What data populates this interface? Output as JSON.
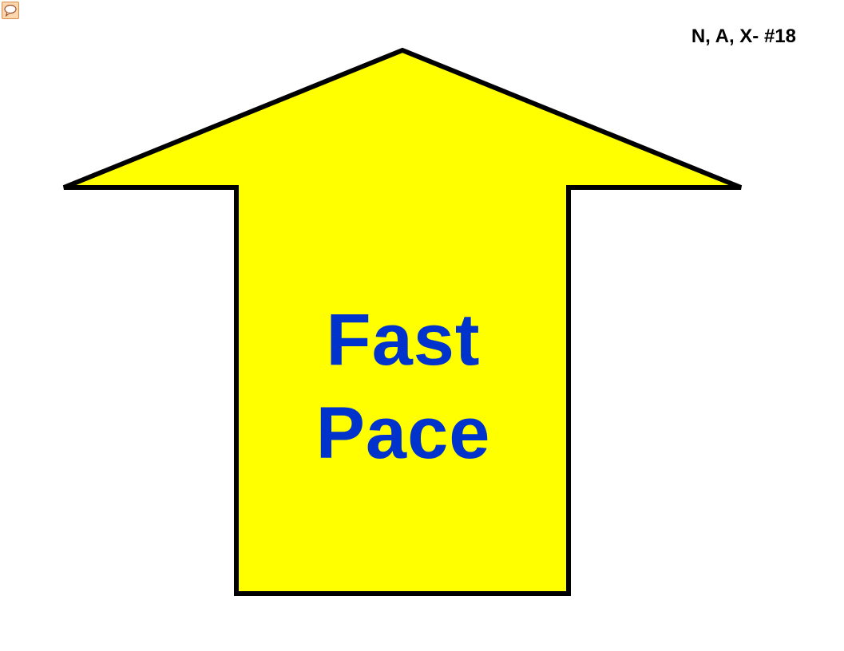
{
  "page": {
    "identifier": "N, A, X- #18"
  },
  "comment": {
    "icon": "comment-bubble-icon"
  },
  "arrow": {
    "direction": "up",
    "fill_color": "#ffff00",
    "outline_color": "#000000",
    "text_color": "#0033cc",
    "line1": "Fast",
    "line2": "Pace"
  }
}
